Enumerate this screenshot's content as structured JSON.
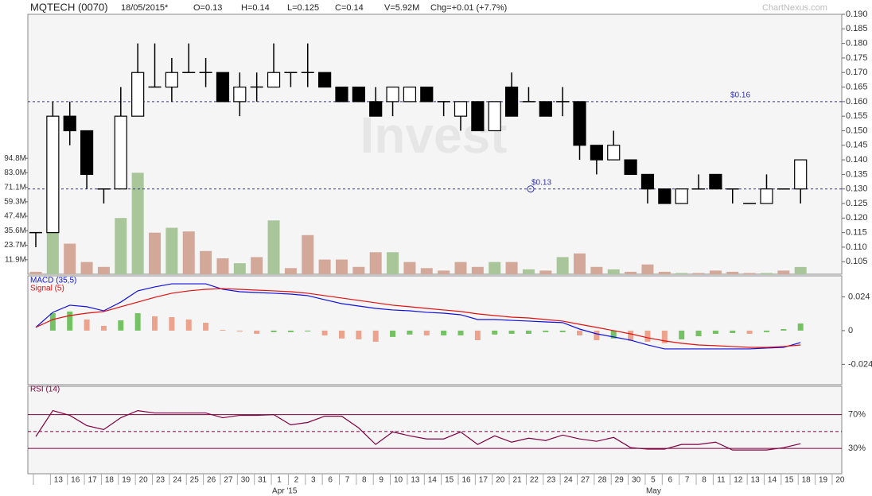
{
  "header": {
    "title": "MQTECH (0070)",
    "date": "18/05/2015*",
    "open": "O=0.13",
    "high": "H=0.14",
    "low": "L=0.125",
    "close": "C=0.14",
    "volume": "V=5.92M",
    "change": "Chg=+0.01 (+7.7%)",
    "source": "ChartNexus.com",
    "watermark": "Invest"
  },
  "chart_data": [
    {
      "type": "candlestick",
      "categories": [
        null,
        "13",
        "16",
        "17",
        "18",
        "19",
        "20",
        "23",
        "24",
        "25",
        "26",
        "27",
        "30",
        "31",
        "1",
        "2",
        "3",
        "6",
        "7",
        "8",
        "9",
        "10",
        "13",
        "14",
        "15",
        "16",
        "17",
        "20",
        "21",
        "22",
        "23",
        "24",
        "27",
        "28",
        "29",
        "30",
        "5",
        "6",
        "7",
        "8",
        "11",
        "12",
        "13",
        "14",
        "15",
        "18",
        "19",
        "20"
      ],
      "months": [
        "Apr '15",
        "May"
      ],
      "open": [
        0.115,
        0.115,
        0.155,
        0.15,
        0.13,
        0.13,
        0.155,
        0.165,
        0.165,
        0.17,
        0.17,
        0.17,
        0.16,
        0.165,
        0.165,
        0.17,
        0.17,
        0.17,
        0.165,
        0.165,
        0.16,
        0.16,
        0.16,
        0.165,
        0.16,
        0.155,
        0.16,
        0.15,
        0.165,
        0.16,
        0.16,
        0.16,
        0.16,
        0.145,
        0.14,
        0.14,
        0.135,
        0.13,
        0.125,
        0.13,
        0.135,
        0.13,
        0.125,
        0.125,
        0.13,
        0.13,
        null,
        null
      ],
      "high": [
        0.115,
        0.16,
        0.16,
        0.15,
        0.13,
        0.165,
        0.18,
        0.18,
        0.175,
        0.18,
        0.175,
        0.17,
        0.17,
        0.17,
        0.18,
        0.17,
        0.18,
        0.17,
        0.165,
        0.165,
        0.165,
        0.165,
        0.165,
        0.165,
        0.16,
        0.16,
        0.16,
        0.16,
        0.17,
        0.165,
        0.16,
        0.165,
        0.16,
        0.145,
        0.15,
        0.14,
        0.135,
        0.13,
        0.13,
        0.135,
        0.135,
        0.13,
        0.125,
        0.135,
        0.13,
        0.14,
        null,
        null
      ],
      "low": [
        0.11,
        0.115,
        0.145,
        0.13,
        0.125,
        0.13,
        0.155,
        0.165,
        0.16,
        0.17,
        0.165,
        0.16,
        0.155,
        0.16,
        0.165,
        0.165,
        0.165,
        0.165,
        0.16,
        0.16,
        0.155,
        0.155,
        0.16,
        0.16,
        0.155,
        0.15,
        0.15,
        0.15,
        0.155,
        0.16,
        0.155,
        0.155,
        0.14,
        0.135,
        0.14,
        0.135,
        0.125,
        0.125,
        0.125,
        0.13,
        0.13,
        0.125,
        0.125,
        0.125,
        0.13,
        0.125,
        null,
        null
      ],
      "close": [
        0.115,
        0.155,
        0.15,
        0.135,
        0.13,
        0.155,
        0.17,
        0.165,
        0.17,
        0.17,
        0.17,
        0.16,
        0.165,
        0.165,
        0.17,
        0.17,
        0.17,
        0.165,
        0.16,
        0.16,
        0.155,
        0.165,
        0.165,
        0.16,
        0.16,
        0.16,
        0.15,
        0.16,
        0.155,
        0.16,
        0.155,
        0.16,
        0.145,
        0.14,
        0.145,
        0.135,
        0.13,
        0.125,
        0.13,
        0.13,
        0.13,
        0.13,
        0.125,
        0.13,
        0.13,
        0.14,
        null,
        null
      ],
      "up_color": "#ffffff",
      "down_color": "#000000",
      "ylim": [
        0.1007,
        0.19
      ],
      "yticks": [
        0.105,
        {
          "value": 0.11,
          "label": "0.110"
        },
        0.115,
        {
          "value": 0.12,
          "label": "0.120"
        },
        0.125,
        {
          "value": 0.13,
          "label": "0.130"
        },
        0.135,
        {
          "value": 0.14,
          "label": "0.140"
        },
        0.145,
        {
          "value": 0.15,
          "label": "0.150"
        },
        0.155,
        {
          "value": 0.16,
          "label": "0.160"
        },
        0.165,
        {
          "value": 0.17,
          "label": "0.170"
        },
        0.175,
        {
          "value": 0.18,
          "label": "0.180"
        },
        0.185,
        {
          "value": 0.19,
          "label": "0.190"
        }
      ],
      "reference_lines": [
        {
          "value": 0.16,
          "label": "$0.16"
        },
        {
          "value": 0.13,
          "label": "$0.13"
        }
      ],
      "reference_color": "#3333aa",
      "volume": {
        "values": [
          2,
          35,
          25,
          10,
          6,
          46,
          83,
          34,
          38,
          35,
          19,
          13,
          9,
          14,
          44,
          5,
          32,
          12,
          12,
          6,
          18,
          18,
          10,
          5,
          3,
          10,
          6,
          10,
          10,
          4,
          3,
          14,
          17,
          6,
          4,
          2,
          8,
          2,
          1,
          1,
          3,
          2,
          1,
          1,
          3,
          5.92,
          null,
          null
        ],
        "up_color": "#a8c69a",
        "down_color": "#d4a898",
        "ylim": [
          0,
          212.6
        ],
        "yticks": [
          {
            "value": 11.85,
            "label": "11.9M"
          },
          {
            "value": 23.7,
            "label": "23.7M"
          },
          {
            "value": 35.55,
            "label": "35.6M"
          },
          {
            "value": 47.4,
            "label": "47.4M"
          },
          {
            "value": 59.25,
            "label": "59.3M"
          },
          {
            "value": 71.1,
            "label": "71.1M"
          },
          {
            "value": 82.95,
            "label": "83.0M"
          },
          {
            "value": 94.8,
            "label": "94.8M"
          }
        ]
      }
    },
    {
      "type": "macd",
      "series": [
        {
          "name": "MACD (35,5)",
          "color": "#1010dd",
          "values": [
            0.0023,
            0.013,
            0.0181,
            0.017,
            0.0141,
            0.0203,
            0.0283,
            0.0311,
            0.0333,
            0.0333,
            0.0333,
            0.0294,
            0.0277,
            0.0271,
            0.0266,
            0.026,
            0.0249,
            0.022,
            0.0192,
            0.0175,
            0.0158,
            0.0147,
            0.0141,
            0.013,
            0.0124,
            0.0113,
            0.0079,
            0.0079,
            0.0073,
            0.0068,
            0.0062,
            0.0057,
            0.0011,
            -0.0023,
            -0.0045,
            -0.0068,
            -0.0102,
            -0.013,
            -0.013,
            -0.013,
            -0.013,
            -0.013,
            -0.013,
            -0.0124,
            -0.0119,
            -0.0085,
            null,
            null
          ]
        },
        {
          "name": "Signal (5)",
          "color": "#e01010",
          "values": [
            0.0023,
            0.0079,
            0.0107,
            0.0124,
            0.0136,
            0.017,
            0.0203,
            0.0237,
            0.0266,
            0.0283,
            0.0294,
            0.0299,
            0.0294,
            0.0288,
            0.0283,
            0.0277,
            0.0266,
            0.0249,
            0.0232,
            0.0215,
            0.0198,
            0.0181,
            0.017,
            0.0158,
            0.0147,
            0.0136,
            0.0119,
            0.0107,
            0.0096,
            0.009,
            0.0079,
            0.0068,
            0.0045,
            0.0023,
            0,
            -0.0023,
            -0.0051,
            -0.0073,
            -0.009,
            -0.0102,
            -0.0107,
            -0.0113,
            -0.0119,
            -0.0119,
            -0.0113,
            -0.0102,
            null,
            null
          ]
        }
      ],
      "histogram": {
        "values": [
          0,
          0.0124,
          0.0136,
          0.0079,
          0.0034,
          0.0073,
          0.0124,
          0.0102,
          0.0096,
          0.0079,
          0.0056,
          0.0005,
          -0.0006,
          -0.0023,
          -0.0011,
          -0.0011,
          -0.0006,
          -0.0034,
          -0.0056,
          -0.0062,
          -0.0079,
          -0.0045,
          -0.0028,
          -0.0034,
          -0.0034,
          -0.0034,
          -0.0068,
          -0.0028,
          -0.0023,
          -0.0023,
          -0.0011,
          -0.0011,
          -0.0034,
          -0.0068,
          -0.0056,
          -0.0073,
          -0.0079,
          -0.009,
          -0.0062,
          -0.004,
          -0.0023,
          -0.0017,
          -0.0023,
          -0.0011,
          0.0011,
          0.0051,
          null,
          null
        ],
        "up_color": "#74c264",
        "down_color": "#eca28c"
      },
      "ylim": [
        -0.0385,
        0.039
      ],
      "yticks": [
        0.024,
        0,
        -0.024
      ]
    },
    {
      "type": "line",
      "series": [
        {
          "name": "RSI (14)",
          "color": "#800040",
          "values": [
            44.0,
            74.7,
            69.1,
            57.0,
            52.3,
            66.3,
            74.7,
            71.9,
            71.9,
            71.9,
            71.9,
            66.3,
            69.1,
            69.1,
            70.0,
            57.9,
            60.7,
            68.1,
            68.1,
            54.2,
            34.7,
            49.5,
            44.9,
            41.2,
            41.2,
            49.5,
            34.7,
            44.9,
            37.4,
            42.1,
            39.3,
            45.8,
            41.2,
            38.4,
            43.0,
            30.9,
            29.1,
            29.1,
            34.7,
            34.7,
            37.4,
            28.1,
            28.1,
            28.1,
            30.9,
            35.6,
            null,
            null
          ]
        }
      ],
      "ylim": [
        0,
        103.5
      ],
      "yticks": [
        {
          "value": 70,
          "label": "70%"
        },
        {
          "value": 30,
          "label": "30%"
        }
      ],
      "midline": 50
    }
  ]
}
